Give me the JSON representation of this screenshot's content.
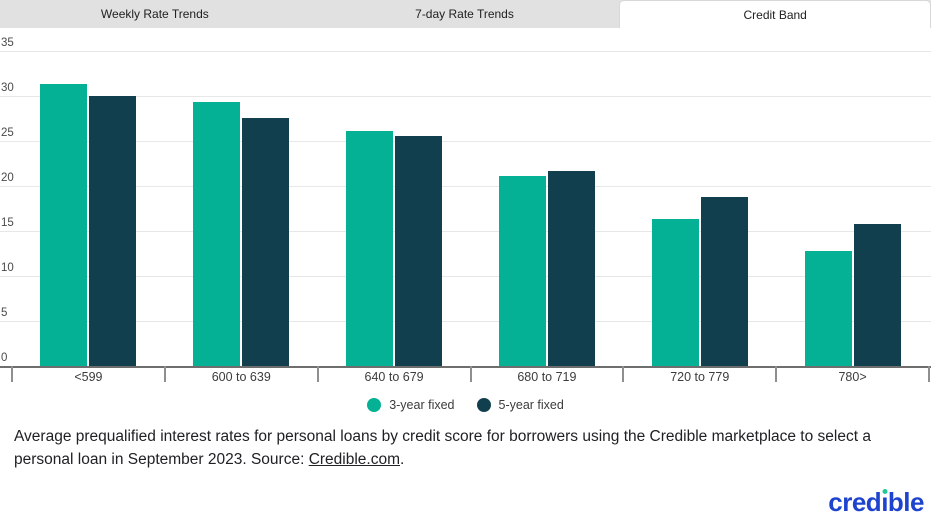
{
  "tabs": [
    {
      "label": "Weekly Rate Trends",
      "active": false
    },
    {
      "label": "7-day Rate Trends",
      "active": false
    },
    {
      "label": "Credit Band",
      "active": true
    }
  ],
  "chart_data": {
    "type": "bar",
    "categories": [
      "<599",
      "600 to 639",
      "640 to 679",
      "680 to 719",
      "720 to 779",
      "780>"
    ],
    "series": [
      {
        "name": "3-year fixed",
        "color": "#05b194",
        "values": [
          31.3,
          29.3,
          26.1,
          21.1,
          16.3,
          12.8
        ]
      },
      {
        "name": "5-year fixed",
        "color": "#123f4e",
        "values": [
          30.0,
          27.6,
          25.6,
          21.7,
          18.8,
          15.8
        ]
      }
    ],
    "title": "",
    "xlabel": "",
    "ylabel": "",
    "ylim": [
      0,
      35
    ],
    "ytick_step": 5,
    "yticks": [
      0,
      5,
      10,
      15,
      20,
      25,
      30,
      35
    ],
    "grid": true,
    "legend_position": "bottom"
  },
  "footer": {
    "caption_before_link": "Average prequalified interest rates for personal loans by credit score for borrowers using the Credible marketplace to select a personal loan in September 2023. Source: ",
    "link_text": "Credible.com",
    "caption_after_link": "."
  },
  "logo": {
    "text": "credible",
    "color": "#1e44cf",
    "dot_color": "#21c998"
  },
  "colors": {
    "tab_bar_bg": "#e1e1e1",
    "active_tab_bg": "#ffffff",
    "gridline": "#e7e7e7",
    "axis_line": "#6e6e6e",
    "series_3yr": "#05b194",
    "series_5yr": "#123f4e"
  }
}
